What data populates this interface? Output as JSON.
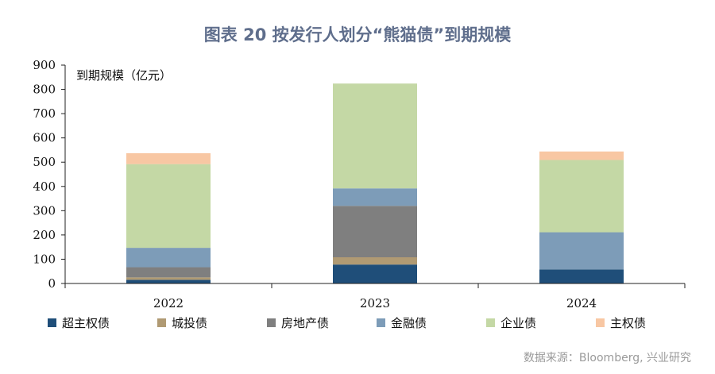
{
  "title": "图表 20 按发行人划分“熊猫债”到期规模",
  "source": "数据来源：Bloomberg, 兴业研究",
  "chart_data": {
    "type": "bar",
    "stacked": true,
    "ylabel": "到期规模（亿元）",
    "ylim": [
      0,
      900
    ],
    "yticks": [
      0,
      100,
      200,
      300,
      400,
      500,
      600,
      700,
      800,
      900
    ],
    "categories": [
      "2022",
      "2023",
      "2024"
    ],
    "legend_position": "bottom",
    "series": [
      {
        "name": "超主权债",
        "color": "#1f4e79",
        "values": [
          15,
          78,
          58
        ]
      },
      {
        "name": "城投债",
        "color": "#b09a73",
        "values": [
          10,
          30,
          0
        ]
      },
      {
        "name": "房地产债",
        "color": "#7f7f7f",
        "values": [
          42,
          212,
          0
        ]
      },
      {
        "name": "金融债",
        "color": "#7d9cb8",
        "values": [
          80,
          72,
          153
        ]
      },
      {
        "name": "企业债",
        "color": "#c4d8a5",
        "values": [
          345,
          432,
          298
        ]
      },
      {
        "name": "主权债",
        "color": "#f8c7a3",
        "values": [
          45,
          0,
          35
        ]
      }
    ]
  }
}
